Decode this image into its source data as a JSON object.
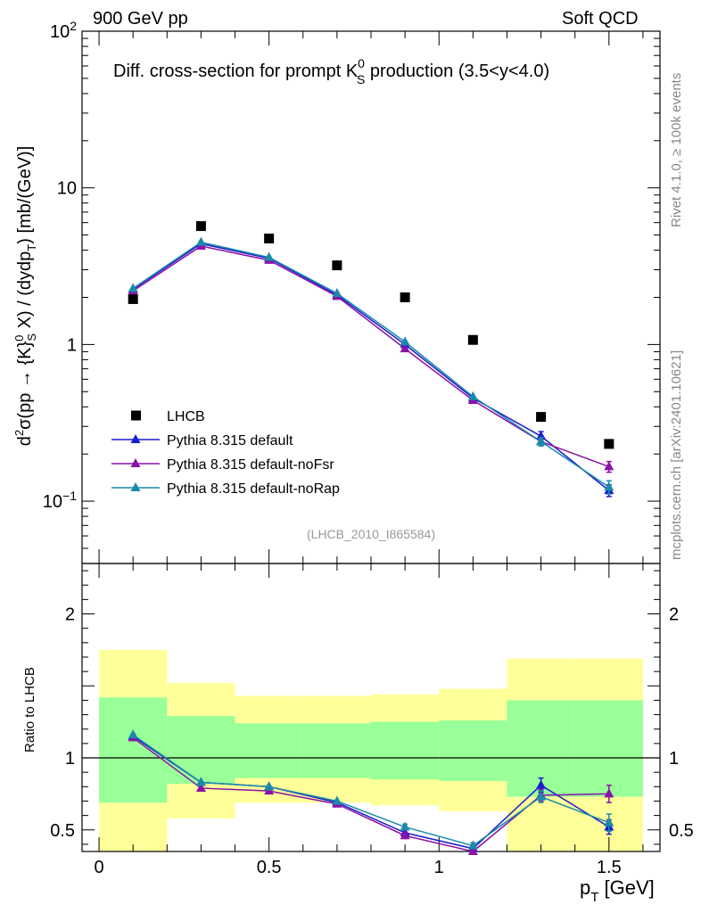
{
  "header": {
    "energy_label": "900 GeV pp",
    "process_label": "Soft QCD"
  },
  "side": {
    "rivet": "Rivet 4.1.0, ≥ 100k events",
    "mcplots": "mcplots.cern.ch [arXiv:2401.10621]"
  },
  "chart_data": [
    {
      "type": "scatter",
      "panel": "main",
      "title_parts": {
        "prefix": "Diff. cross-section for prompt K",
        "sup": "0",
        "sub": "S",
        "suffix": " production (3.5<y<4.0)"
      },
      "analysis_tag": "(LHCB_2010_I865584)",
      "yscale": "log",
      "ylim": [
        0.04,
        100
      ],
      "xlim": [
        -0.05,
        1.65
      ],
      "ylabel": "d²σ(pp → {K}⁰S X) / (dydpT) [mb/(GeV)]",
      "y_ticks": [
        {
          "value": 0.1,
          "base": "10",
          "exp": "−1"
        },
        {
          "value": 1,
          "base": "1",
          "exp": ""
        },
        {
          "value": 10,
          "base": "10",
          "exp": ""
        },
        {
          "value": 100,
          "base": "10",
          "exp": "2"
        }
      ],
      "x": [
        0.1,
        0.3,
        0.5,
        0.7,
        0.9,
        1.1,
        1.3,
        1.5
      ],
      "series": [
        {
          "name": "LHCB",
          "color": "#000000",
          "marker": "square",
          "values": [
            1.95,
            5.7,
            4.75,
            3.2,
            2.0,
            1.07,
            0.345,
            0.232
          ]
        },
        {
          "name": "Pythia 8.315 default",
          "color": "#1b1bcc",
          "marker": "triangle",
          "values": [
            2.25,
            4.4,
            3.55,
            2.07,
            1.0,
            0.455,
            0.26,
            0.117
          ],
          "errors": [
            0,
            0,
            0,
            0,
            0,
            0,
            0.018,
            0.01
          ]
        },
        {
          "name": "Pythia 8.315 default-noFsr",
          "color": "#8b12a6",
          "marker": "triangle",
          "values": [
            2.2,
            4.25,
            3.45,
            2.03,
            0.94,
            0.44,
            0.24,
            0.166
          ],
          "errors": [
            0,
            0,
            0,
            0,
            0,
            0,
            0,
            0.013
          ]
        },
        {
          "name": "Pythia 8.315 default-noRap",
          "color": "#1a8aaa",
          "marker": "triangle",
          "values": [
            2.28,
            4.5,
            3.6,
            2.12,
            1.04,
            0.465,
            0.24,
            0.123
          ],
          "errors": [
            0,
            0,
            0,
            0,
            0,
            0,
            0.015,
            0.012
          ]
        }
      ]
    },
    {
      "type": "scatter",
      "panel": "ratio",
      "ylabel": "Ratio to LHCB",
      "xlabel_main": "p",
      "xlabel_sub": "T",
      "xlabel_units": " [GeV]",
      "ylim": [
        0.35,
        2.35
      ],
      "xlim": [
        -0.05,
        1.65
      ],
      "y_ticks": [
        0.5,
        1,
        2
      ],
      "x_ticks": [
        {
          "value": 0,
          "label": "0"
        },
        {
          "value": 0.5,
          "label": "0.5"
        },
        {
          "value": 1,
          "label": "1"
        },
        {
          "value": 1.5,
          "label": "1.5"
        }
      ],
      "reference_line": 1,
      "bands": {
        "bin_edges": [
          0,
          0.2,
          0.4,
          0.6,
          0.8,
          1.0,
          1.2,
          1.4,
          1.6
        ],
        "outer": [
          [
            0.35,
            1.75
          ],
          [
            0.58,
            1.52
          ],
          [
            0.69,
            1.43
          ],
          [
            0.69,
            1.43
          ],
          [
            0.67,
            1.44
          ],
          [
            0.63,
            1.48
          ],
          [
            0.35,
            1.69
          ],
          [
            0.35,
            1.69
          ]
        ],
        "inner": [
          [
            0.69,
            1.42
          ],
          [
            0.82,
            1.29
          ],
          [
            0.86,
            1.24
          ],
          [
            0.86,
            1.24
          ],
          [
            0.85,
            1.25
          ],
          [
            0.84,
            1.26
          ],
          [
            0.73,
            1.4
          ],
          [
            0.73,
            1.4
          ]
        ],
        "outer_color": "#ffff99",
        "inner_color": "#99ff99"
      },
      "x": [
        0.1,
        0.3,
        0.5,
        0.7,
        0.9,
        1.1,
        1.3,
        1.5
      ],
      "series": [
        {
          "name": "Pythia 8.315 default",
          "color": "#1b1bcc",
          "values": [
            1.15,
            0.83,
            0.8,
            0.69,
            0.48,
            0.37,
            0.81,
            0.52
          ],
          "errors": [
            0,
            0,
            0,
            0,
            0.02,
            0.02,
            0.05,
            0.05
          ]
        },
        {
          "name": "Pythia 8.315 default-noFsr",
          "color": "#8b12a6",
          "values": [
            1.14,
            0.79,
            0.77,
            0.68,
            0.46,
            0.35,
            0.74,
            0.75
          ],
          "errors": [
            0,
            0,
            0,
            0,
            0.02,
            0.02,
            0.04,
            0.06
          ]
        },
        {
          "name": "Pythia 8.315 default-noRap",
          "color": "#1a8aaa",
          "values": [
            1.16,
            0.83,
            0.8,
            0.7,
            0.52,
            0.39,
            0.73,
            0.55
          ],
          "errors": [
            0,
            0,
            0,
            0,
            0.02,
            0.02,
            0.04,
            0.06
          ]
        }
      ]
    }
  ]
}
